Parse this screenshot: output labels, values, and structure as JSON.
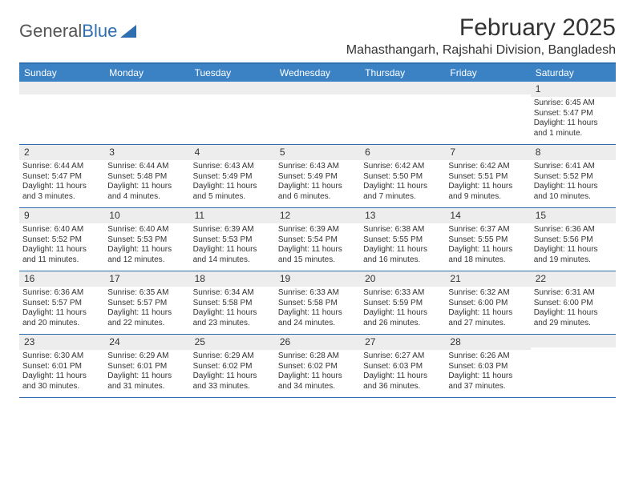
{
  "brand": {
    "part1": "General",
    "part2": "Blue"
  },
  "title": "February 2025",
  "location": "Mahasthangarh, Rajshahi Division, Bangladesh",
  "colors": {
    "header_bar": "#3b82c4",
    "border": "#2f6fb0",
    "daynum_bg": "#ededed",
    "text": "#333333",
    "white": "#ffffff"
  },
  "weekdays": [
    "Sunday",
    "Monday",
    "Tuesday",
    "Wednesday",
    "Thursday",
    "Friday",
    "Saturday"
  ],
  "weeks": [
    [
      {
        "n": "",
        "sr": "",
        "ss": "",
        "dl": ""
      },
      {
        "n": "",
        "sr": "",
        "ss": "",
        "dl": ""
      },
      {
        "n": "",
        "sr": "",
        "ss": "",
        "dl": ""
      },
      {
        "n": "",
        "sr": "",
        "ss": "",
        "dl": ""
      },
      {
        "n": "",
        "sr": "",
        "ss": "",
        "dl": ""
      },
      {
        "n": "",
        "sr": "",
        "ss": "",
        "dl": ""
      },
      {
        "n": "1",
        "sr": "Sunrise: 6:45 AM",
        "ss": "Sunset: 5:47 PM",
        "dl": "Daylight: 11 hours and 1 minute."
      }
    ],
    [
      {
        "n": "2",
        "sr": "Sunrise: 6:44 AM",
        "ss": "Sunset: 5:47 PM",
        "dl": "Daylight: 11 hours and 3 minutes."
      },
      {
        "n": "3",
        "sr": "Sunrise: 6:44 AM",
        "ss": "Sunset: 5:48 PM",
        "dl": "Daylight: 11 hours and 4 minutes."
      },
      {
        "n": "4",
        "sr": "Sunrise: 6:43 AM",
        "ss": "Sunset: 5:49 PM",
        "dl": "Daylight: 11 hours and 5 minutes."
      },
      {
        "n": "5",
        "sr": "Sunrise: 6:43 AM",
        "ss": "Sunset: 5:49 PM",
        "dl": "Daylight: 11 hours and 6 minutes."
      },
      {
        "n": "6",
        "sr": "Sunrise: 6:42 AM",
        "ss": "Sunset: 5:50 PM",
        "dl": "Daylight: 11 hours and 7 minutes."
      },
      {
        "n": "7",
        "sr": "Sunrise: 6:42 AM",
        "ss": "Sunset: 5:51 PM",
        "dl": "Daylight: 11 hours and 9 minutes."
      },
      {
        "n": "8",
        "sr": "Sunrise: 6:41 AM",
        "ss": "Sunset: 5:52 PM",
        "dl": "Daylight: 11 hours and 10 minutes."
      }
    ],
    [
      {
        "n": "9",
        "sr": "Sunrise: 6:40 AM",
        "ss": "Sunset: 5:52 PM",
        "dl": "Daylight: 11 hours and 11 minutes."
      },
      {
        "n": "10",
        "sr": "Sunrise: 6:40 AM",
        "ss": "Sunset: 5:53 PM",
        "dl": "Daylight: 11 hours and 12 minutes."
      },
      {
        "n": "11",
        "sr": "Sunrise: 6:39 AM",
        "ss": "Sunset: 5:53 PM",
        "dl": "Daylight: 11 hours and 14 minutes."
      },
      {
        "n": "12",
        "sr": "Sunrise: 6:39 AM",
        "ss": "Sunset: 5:54 PM",
        "dl": "Daylight: 11 hours and 15 minutes."
      },
      {
        "n": "13",
        "sr": "Sunrise: 6:38 AM",
        "ss": "Sunset: 5:55 PM",
        "dl": "Daylight: 11 hours and 16 minutes."
      },
      {
        "n": "14",
        "sr": "Sunrise: 6:37 AM",
        "ss": "Sunset: 5:55 PM",
        "dl": "Daylight: 11 hours and 18 minutes."
      },
      {
        "n": "15",
        "sr": "Sunrise: 6:36 AM",
        "ss": "Sunset: 5:56 PM",
        "dl": "Daylight: 11 hours and 19 minutes."
      }
    ],
    [
      {
        "n": "16",
        "sr": "Sunrise: 6:36 AM",
        "ss": "Sunset: 5:57 PM",
        "dl": "Daylight: 11 hours and 20 minutes."
      },
      {
        "n": "17",
        "sr": "Sunrise: 6:35 AM",
        "ss": "Sunset: 5:57 PM",
        "dl": "Daylight: 11 hours and 22 minutes."
      },
      {
        "n": "18",
        "sr": "Sunrise: 6:34 AM",
        "ss": "Sunset: 5:58 PM",
        "dl": "Daylight: 11 hours and 23 minutes."
      },
      {
        "n": "19",
        "sr": "Sunrise: 6:33 AM",
        "ss": "Sunset: 5:58 PM",
        "dl": "Daylight: 11 hours and 24 minutes."
      },
      {
        "n": "20",
        "sr": "Sunrise: 6:33 AM",
        "ss": "Sunset: 5:59 PM",
        "dl": "Daylight: 11 hours and 26 minutes."
      },
      {
        "n": "21",
        "sr": "Sunrise: 6:32 AM",
        "ss": "Sunset: 6:00 PM",
        "dl": "Daylight: 11 hours and 27 minutes."
      },
      {
        "n": "22",
        "sr": "Sunrise: 6:31 AM",
        "ss": "Sunset: 6:00 PM",
        "dl": "Daylight: 11 hours and 29 minutes."
      }
    ],
    [
      {
        "n": "23",
        "sr": "Sunrise: 6:30 AM",
        "ss": "Sunset: 6:01 PM",
        "dl": "Daylight: 11 hours and 30 minutes."
      },
      {
        "n": "24",
        "sr": "Sunrise: 6:29 AM",
        "ss": "Sunset: 6:01 PM",
        "dl": "Daylight: 11 hours and 31 minutes."
      },
      {
        "n": "25",
        "sr": "Sunrise: 6:29 AM",
        "ss": "Sunset: 6:02 PM",
        "dl": "Daylight: 11 hours and 33 minutes."
      },
      {
        "n": "26",
        "sr": "Sunrise: 6:28 AM",
        "ss": "Sunset: 6:02 PM",
        "dl": "Daylight: 11 hours and 34 minutes."
      },
      {
        "n": "27",
        "sr": "Sunrise: 6:27 AM",
        "ss": "Sunset: 6:03 PM",
        "dl": "Daylight: 11 hours and 36 minutes."
      },
      {
        "n": "28",
        "sr": "Sunrise: 6:26 AM",
        "ss": "Sunset: 6:03 PM",
        "dl": "Daylight: 11 hours and 37 minutes."
      },
      {
        "n": "",
        "sr": "",
        "ss": "",
        "dl": ""
      }
    ]
  ]
}
